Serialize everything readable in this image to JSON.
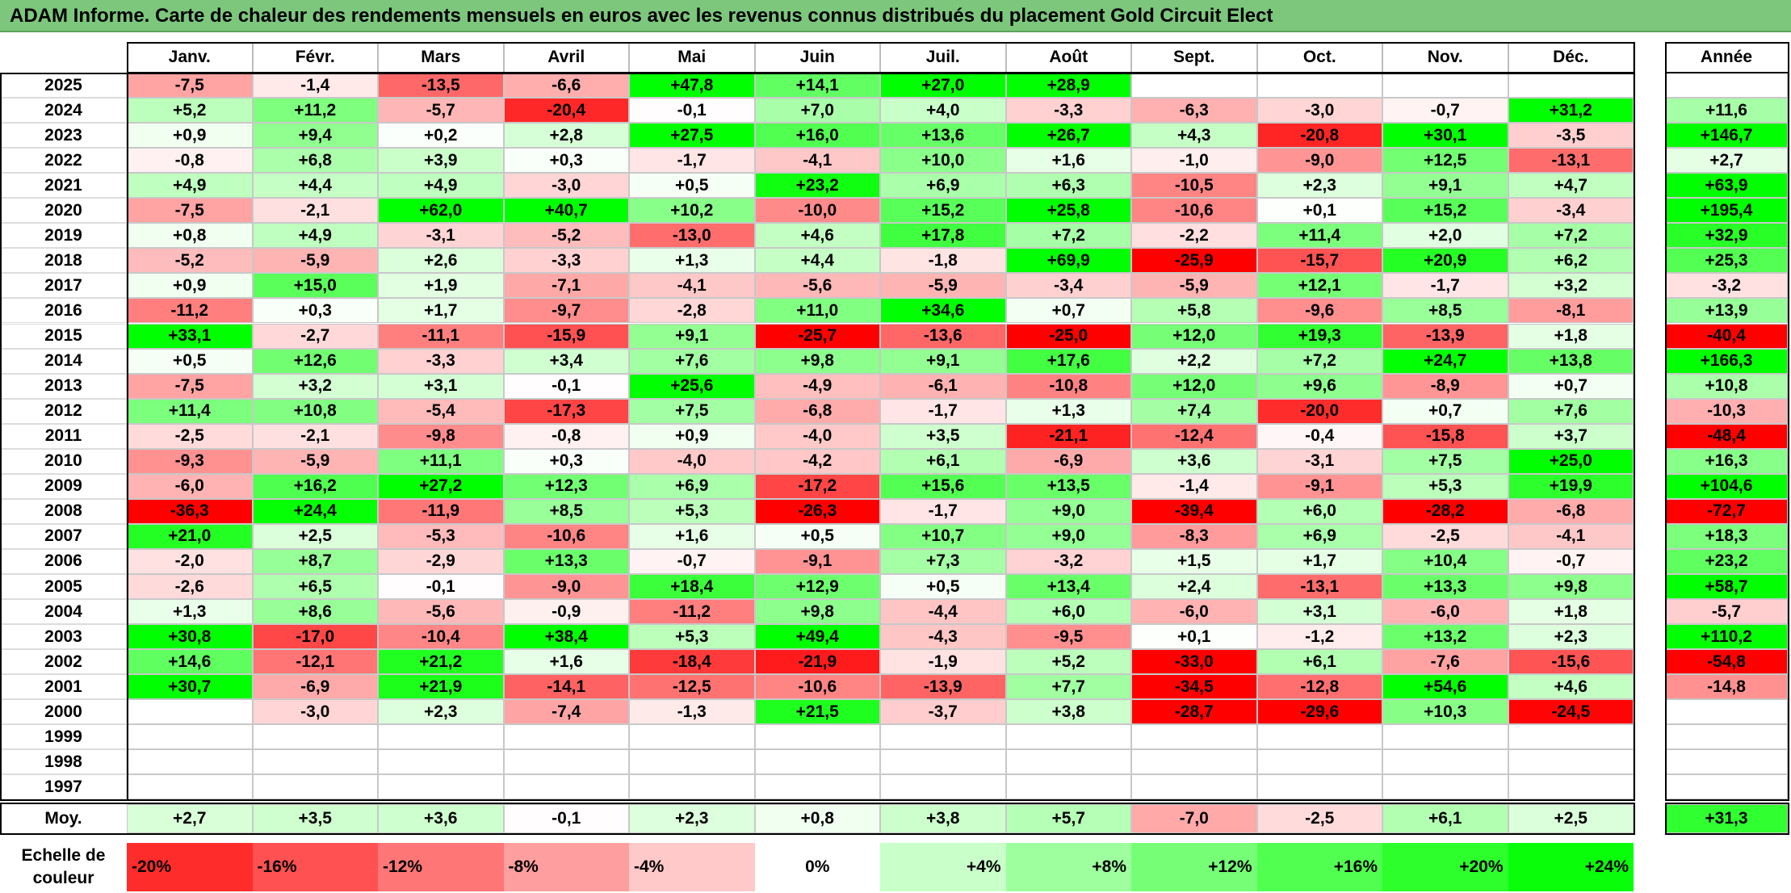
{
  "title": "ADAM Informe. Carte de chaleur des rendements mensuels en euros avec les revenus connus distribués du placement Gold Circuit Elect",
  "colors": {
    "positive_max": "#00ff00",
    "negative_max": "#ff0000",
    "neutral": "#ffffff",
    "title_bg": "#7dc77d"
  },
  "chart_data": {
    "type": "heatmap",
    "title": "ADAM Informe. Carte de chaleur des rendements mensuels en euros avec les revenus connus distribués du placement Gold Circuit Elect",
    "months": [
      "Janv.",
      "Févr.",
      "Mars",
      "Avril",
      "Mai",
      "Juin",
      "Juil.",
      "Août",
      "Sept.",
      "Oct.",
      "Nov.",
      "Déc."
    ],
    "year_header": "Année",
    "rows": [
      {
        "year": "2025",
        "values": [
          "-7,5",
          "-1,4",
          "-13,5",
          "-6,6",
          "+47,8",
          "+14,1",
          "+27,0",
          "+28,9",
          "",
          "",
          "",
          ""
        ],
        "annual": ""
      },
      {
        "year": "2024",
        "values": [
          "+5,2",
          "+11,2",
          "-5,7",
          "-20,4",
          "-0,1",
          "+7,0",
          "+4,0",
          "-3,3",
          "-6,3",
          "-3,0",
          "-0,7",
          "+31,2"
        ],
        "annual": "+11,6"
      },
      {
        "year": "2023",
        "values": [
          "+0,9",
          "+9,4",
          "+0,2",
          "+2,8",
          "+27,5",
          "+16,0",
          "+13,6",
          "+26,7",
          "+4,3",
          "-20,8",
          "+30,1",
          "-3,5"
        ],
        "annual": "+146,7"
      },
      {
        "year": "2022",
        "values": [
          "-0,8",
          "+6,8",
          "+3,9",
          "+0,3",
          "-1,7",
          "-4,1",
          "+10,0",
          "+1,6",
          "-1,0",
          "-9,0",
          "+12,5",
          "-13,1"
        ],
        "annual": "+2,7"
      },
      {
        "year": "2021",
        "values": [
          "+4,9",
          "+4,4",
          "+4,9",
          "-3,0",
          "+0,5",
          "+23,2",
          "+6,9",
          "+6,3",
          "-10,5",
          "+2,3",
          "+9,1",
          "+4,7"
        ],
        "annual": "+63,9"
      },
      {
        "year": "2020",
        "values": [
          "-7,5",
          "-2,1",
          "+62,0",
          "+40,7",
          "+10,2",
          "-10,0",
          "+15,2",
          "+25,8",
          "-10,6",
          "+0,1",
          "+15,2",
          "-3,4"
        ],
        "annual": "+195,4"
      },
      {
        "year": "2019",
        "values": [
          "+0,8",
          "+4,9",
          "-3,1",
          "-5,2",
          "-13,0",
          "+4,6",
          "+17,8",
          "+7,2",
          "-2,2",
          "+11,4",
          "+2,0",
          "+7,2"
        ],
        "annual": "+32,9"
      },
      {
        "year": "2018",
        "values": [
          "-5,2",
          "-5,9",
          "+2,6",
          "-3,3",
          "+1,3",
          "+4,4",
          "-1,8",
          "+69,9",
          "-25,9",
          "-15,7",
          "+20,9",
          "+6,2"
        ],
        "annual": "+25,3"
      },
      {
        "year": "2017",
        "values": [
          "+0,9",
          "+15,0",
          "+1,9",
          "-7,1",
          "-4,1",
          "-5,6",
          "-5,9",
          "-3,4",
          "-5,9",
          "+12,1",
          "-1,7",
          "+3,2"
        ],
        "annual": "-3,2"
      },
      {
        "year": "2016",
        "values": [
          "-11,2",
          "+0,3",
          "+1,7",
          "-9,7",
          "-2,8",
          "+11,0",
          "+34,6",
          "+0,7",
          "+5,8",
          "-9,6",
          "+8,5",
          "-8,1"
        ],
        "annual": "+13,9"
      },
      {
        "year": "2015",
        "values": [
          "+33,1",
          "-2,7",
          "-11,1",
          "-15,9",
          "+9,1",
          "-25,7",
          "-13,6",
          "-25,0",
          "+12,0",
          "+19,3",
          "-13,9",
          "+1,8"
        ],
        "annual": "-40,4"
      },
      {
        "year": "2014",
        "values": [
          "+0,5",
          "+12,6",
          "-3,3",
          "+3,4",
          "+7,6",
          "+9,8",
          "+9,1",
          "+17,6",
          "+2,2",
          "+7,2",
          "+24,7",
          "+13,8"
        ],
        "annual": "+166,3"
      },
      {
        "year": "2013",
        "values": [
          "-7,5",
          "+3,2",
          "+3,1",
          "-0,1",
          "+25,6",
          "-4,9",
          "-6,1",
          "-10,8",
          "+12,0",
          "+9,6",
          "-8,9",
          "+0,7"
        ],
        "annual": "+10,8"
      },
      {
        "year": "2012",
        "values": [
          "+11,4",
          "+10,8",
          "-5,4",
          "-17,3",
          "+7,5",
          "-6,8",
          "-1,7",
          "+1,3",
          "+7,4",
          "-20,0",
          "+0,7",
          "+7,6"
        ],
        "annual": "-10,3"
      },
      {
        "year": "2011",
        "values": [
          "-2,5",
          "-2,1",
          "-9,8",
          "-0,8",
          "+0,9",
          "-4,0",
          "+3,5",
          "-21,1",
          "-12,4",
          "-0,4",
          "-15,8",
          "+3,7"
        ],
        "annual": "-48,4"
      },
      {
        "year": "2010",
        "values": [
          "-9,3",
          "-5,9",
          "+11,1",
          "+0,3",
          "-4,0",
          "-4,2",
          "+6,1",
          "-6,9",
          "+3,6",
          "-3,1",
          "+7,5",
          "+25,0"
        ],
        "annual": "+16,3"
      },
      {
        "year": "2009",
        "values": [
          "-6,0",
          "+16,2",
          "+27,2",
          "+12,3",
          "+6,9",
          "-17,2",
          "+15,6",
          "+13,5",
          "-1,4",
          "-9,1",
          "+5,3",
          "+19,9"
        ],
        "annual": "+104,6"
      },
      {
        "year": "2008",
        "values": [
          "-36,3",
          "+24,4",
          "-11,9",
          "+8,5",
          "+5,3",
          "-26,3",
          "-1,7",
          "+9,0",
          "-39,4",
          "+6,0",
          "-28,2",
          "-6,8"
        ],
        "annual": "-72,7"
      },
      {
        "year": "2007",
        "values": [
          "+21,0",
          "+2,5",
          "-5,3",
          "-10,6",
          "+1,6",
          "+0,5",
          "+10,7",
          "+9,0",
          "-8,3",
          "+6,9",
          "-2,5",
          "-4,1"
        ],
        "annual": "+18,3"
      },
      {
        "year": "2006",
        "values": [
          "-2,0",
          "+8,7",
          "-2,9",
          "+13,3",
          "-0,7",
          "-9,1",
          "+7,3",
          "-3,2",
          "+1,5",
          "+1,7",
          "+10,4",
          "-0,7"
        ],
        "annual": "+23,2"
      },
      {
        "year": "2005",
        "values": [
          "-2,6",
          "+6,5",
          "-0,1",
          "-9,0",
          "+18,4",
          "+12,9",
          "+0,5",
          "+13,4",
          "+2,4",
          "-13,1",
          "+13,3",
          "+9,8"
        ],
        "annual": "+58,7"
      },
      {
        "year": "2004",
        "values": [
          "+1,3",
          "+8,6",
          "-5,6",
          "-0,9",
          "-11,2",
          "+9,8",
          "-4,4",
          "+6,0",
          "-6,0",
          "+3,1",
          "-6,0",
          "+1,8"
        ],
        "annual": "-5,7"
      },
      {
        "year": "2003",
        "values": [
          "+30,8",
          "-17,0",
          "-10,4",
          "+38,4",
          "+5,3",
          "+49,4",
          "-4,3",
          "-9,5",
          "+0,1",
          "-1,2",
          "+13,2",
          "+2,3"
        ],
        "annual": "+110,2"
      },
      {
        "year": "2002",
        "values": [
          "+14,6",
          "-12,1",
          "+21,2",
          "+1,6",
          "-18,4",
          "-21,9",
          "-1,9",
          "+5,2",
          "-33,0",
          "+6,1",
          "-7,6",
          "-15,6"
        ],
        "annual": "-54,8"
      },
      {
        "year": "2001",
        "values": [
          "+30,7",
          "-6,9",
          "+21,9",
          "-14,1",
          "-12,5",
          "-10,6",
          "-13,9",
          "+7,7",
          "-34,5",
          "-12,8",
          "+54,6",
          "+4,6"
        ],
        "annual": "-14,8"
      },
      {
        "year": "2000",
        "values": [
          "",
          "-3,0",
          "+2,3",
          "-7,4",
          "-1,3",
          "+21,5",
          "-3,7",
          "+3,8",
          "-28,7",
          "-29,6",
          "+10,3",
          "-24,5"
        ],
        "annual": ""
      },
      {
        "year": "1999",
        "values": [
          "",
          "",
          "",
          "",
          "",
          "",
          "",
          "",
          "",
          "",
          "",
          ""
        ],
        "annual": ""
      },
      {
        "year": "1998",
        "values": [
          "",
          "",
          "",
          "",
          "",
          "",
          "",
          "",
          "",
          "",
          "",
          ""
        ],
        "annual": ""
      },
      {
        "year": "1997",
        "values": [
          "",
          "",
          "",
          "",
          "",
          "",
          "",
          "",
          "",
          "",
          "",
          ""
        ],
        "annual": ""
      }
    ],
    "average": {
      "label": "Moy.",
      "values": [
        "+2,7",
        "+3,5",
        "+3,6",
        "-0,1",
        "+2,3",
        "+0,8",
        "+3,8",
        "+5,7",
        "-7,0",
        "-2,5",
        "+6,1",
        "+2,5"
      ],
      "annual": "+31,3"
    },
    "scale": {
      "label_line1": "Echelle de",
      "label_line2": "couleur",
      "steps": [
        "-20%",
        "-16%",
        "-12%",
        "-8%",
        "-4%",
        "0%",
        "+4%",
        "+8%",
        "+12%",
        "+16%",
        "+20%",
        "+24%"
      ],
      "step_values": [
        -20,
        -16,
        -12,
        -8,
        -4,
        0,
        4,
        8,
        12,
        16,
        20,
        24
      ]
    }
  }
}
